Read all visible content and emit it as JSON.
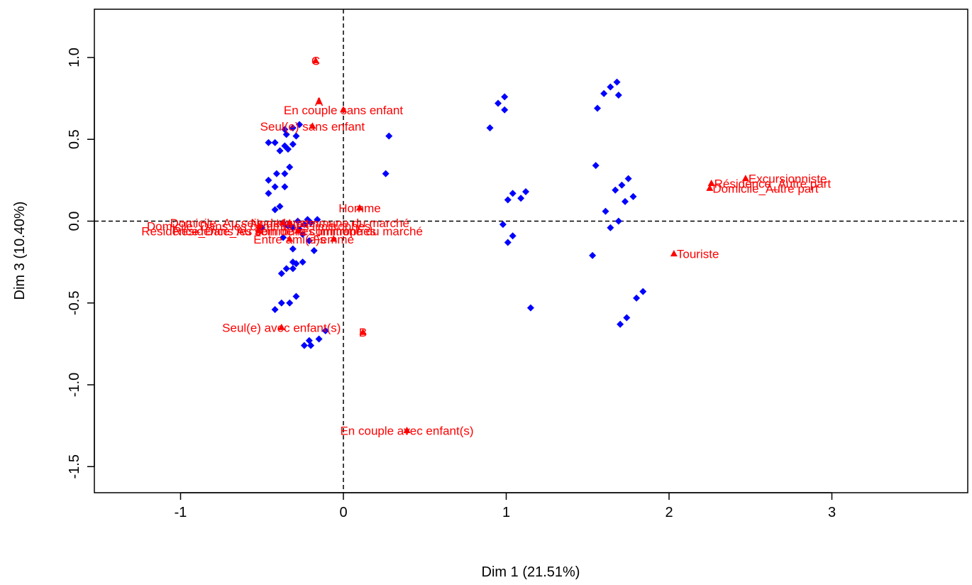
{
  "chart_data": {
    "type": "scatter",
    "xlabel": "Dim 1 (21.51%)",
    "ylabel": "Dim 3 (10.40%)",
    "xlim": [
      -1.5,
      3.8
    ],
    "ylim": [
      -1.68,
      1.3
    ],
    "x_ticks": [
      "-1",
      "0",
      "1",
      "2",
      "3"
    ],
    "y_ticks": [
      "1.0",
      "0.5",
      "0.0",
      "-0.5",
      "-1.0",
      "-1.5"
    ],
    "reference_lines": {
      "x": 0,
      "y": 0
    },
    "colors": {
      "individuals": "#0000ff",
      "categories": "#ff0000"
    },
    "series": [
      {
        "marker": "diamond",
        "points": [
          [
            -0.39,
            0.43
          ],
          [
            -0.34,
            0.44
          ],
          [
            -0.31,
            0.47
          ],
          [
            -0.36,
            0.46
          ],
          [
            -0.42,
            0.48
          ],
          [
            -0.46,
            0.48
          ],
          [
            -0.29,
            0.52
          ],
          [
            -0.35,
            0.53
          ],
          [
            -0.36,
            0.56
          ],
          [
            -0.31,
            0.57
          ],
          [
            -0.27,
            0.59
          ],
          [
            -0.46,
            0.25
          ],
          [
            -0.41,
            0.29
          ],
          [
            -0.36,
            0.29
          ],
          [
            -0.33,
            0.33
          ],
          [
            -0.46,
            0.17
          ],
          [
            -0.42,
            0.21
          ],
          [
            -0.36,
            0.21
          ],
          [
            -0.42,
            0.07
          ],
          [
            -0.39,
            0.09
          ],
          [
            -0.5,
            -0.04
          ],
          [
            -0.37,
            -0.01
          ],
          [
            -0.34,
            -0.03
          ],
          [
            -0.31,
            -0.04
          ],
          [
            -0.28,
            0.0
          ],
          [
            -0.24,
            -0.02
          ],
          [
            -0.2,
            -0.01
          ],
          [
            -0.22,
            0.01
          ],
          [
            -0.16,
            0.01
          ],
          [
            -0.27,
            -0.05
          ],
          [
            -0.25,
            -0.08
          ],
          [
            -0.21,
            -0.12
          ],
          [
            -0.37,
            -0.1
          ],
          [
            -0.31,
            -0.17
          ],
          [
            -0.38,
            -0.32
          ],
          [
            -0.35,
            -0.29
          ],
          [
            -0.31,
            -0.29
          ],
          [
            -0.29,
            -0.26
          ],
          [
            -0.25,
            -0.25
          ],
          [
            -0.31,
            -0.25
          ],
          [
            -0.18,
            -0.18
          ],
          [
            -0.42,
            -0.54
          ],
          [
            -0.38,
            -0.5
          ],
          [
            -0.33,
            -0.5
          ],
          [
            -0.29,
            -0.46
          ],
          [
            -0.24,
            -0.76
          ],
          [
            -0.2,
            -0.76
          ],
          [
            -0.21,
            -0.73
          ],
          [
            -0.15,
            -0.72
          ],
          [
            -0.11,
            -0.67
          ],
          [
            0.26,
            0.29
          ],
          [
            0.28,
            0.52
          ],
          [
            0.9,
            0.57
          ],
          [
            0.95,
            0.72
          ],
          [
            0.99,
            0.76
          ],
          [
            0.99,
            0.68
          ],
          [
            0.98,
            -0.02
          ],
          [
            1.01,
            0.13
          ],
          [
            1.04,
            0.17
          ],
          [
            1.09,
            0.14
          ],
          [
            1.12,
            0.18
          ],
          [
            1.01,
            -0.13
          ],
          [
            1.04,
            -0.09
          ],
          [
            1.15,
            -0.53
          ],
          [
            1.56,
            0.69
          ],
          [
            1.6,
            0.78
          ],
          [
            1.64,
            0.82
          ],
          [
            1.68,
            0.85
          ],
          [
            1.69,
            0.77
          ],
          [
            1.55,
            0.34
          ],
          [
            1.61,
            0.06
          ],
          [
            1.67,
            0.19
          ],
          [
            1.71,
            0.22
          ],
          [
            1.75,
            0.26
          ],
          [
            1.73,
            0.12
          ],
          [
            1.78,
            0.15
          ],
          [
            1.69,
            0.0
          ],
          [
            1.64,
            -0.04
          ],
          [
            1.53,
            -0.21
          ],
          [
            1.7,
            -0.63
          ],
          [
            1.74,
            -0.59
          ],
          [
            1.8,
            -0.47
          ],
          [
            1.84,
            -0.43
          ]
        ]
      },
      {
        "marker": "triangle",
        "points": [
          {
            "x": -0.17,
            "y": 0.98,
            "label": "C"
          },
          {
            "x": -0.15,
            "y": 0.73,
            "label": "A"
          },
          {
            "x": 0.0,
            "y": 0.68,
            "label": "En couple sans enfant"
          },
          {
            "x": -0.19,
            "y": 0.58,
            "label": "Seul(e) sans enfant"
          },
          {
            "x": 0.1,
            "y": 0.08,
            "label": "Homme"
          },
          {
            "x": -0.37,
            "y": -0.01,
            "label": "Non touriste"
          },
          {
            "x": -0.33,
            "y": -0.01,
            "label": "Domicile_Au sein de la commune du marché"
          },
          {
            "x": -0.52,
            "y": -0.03,
            "label": "Domicile_Dans les communes limitrophes"
          },
          {
            "x": -0.28,
            "y": -0.06,
            "label": "Résidence_Au sein de la commune du marché"
          },
          {
            "x": -0.52,
            "y": -0.06,
            "label": "Résidence_Dans les communes limitrophes"
          },
          {
            "x": -0.33,
            "y": -0.11,
            "label": "Entre ami(e)s"
          },
          {
            "x": -0.06,
            "y": -0.11,
            "label": "Femme"
          },
          {
            "x": -0.38,
            "y": -0.65,
            "label": "Seul(e) avec enfant(s)"
          },
          {
            "x": 0.12,
            "y": -0.68,
            "label": "B"
          },
          {
            "x": 0.39,
            "y": -1.28,
            "label": "En couple avec enfant(s)"
          },
          {
            "x": 2.26,
            "y": 0.23,
            "label": "Résidence_Autre part"
          },
          {
            "x": 2.47,
            "y": 0.26,
            "label": "Excursionniste"
          },
          {
            "x": 2.25,
            "y": 0.2,
            "label": "Domicile_Autre part"
          },
          {
            "x": 2.03,
            "y": -0.2,
            "label": "Touriste"
          }
        ]
      }
    ]
  }
}
